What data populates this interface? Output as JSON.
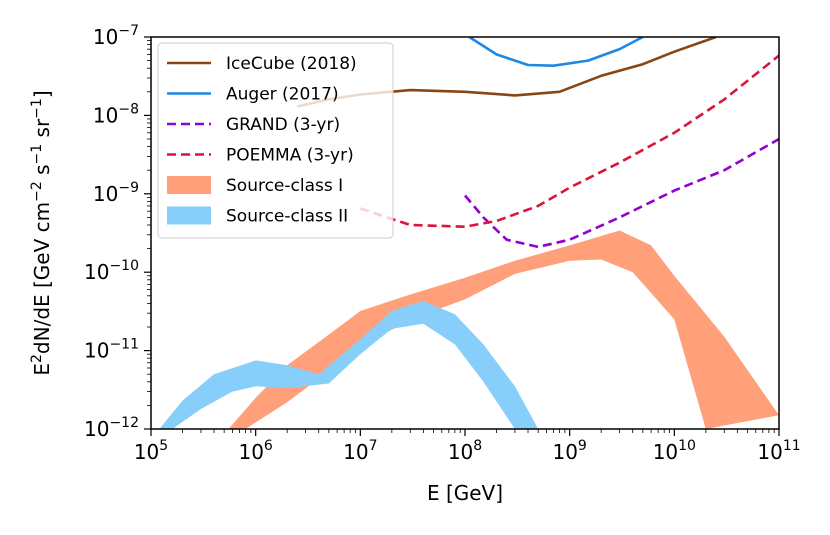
{
  "chart_data": {
    "type": "line",
    "xlabel": "E [GeV]",
    "ylabel_parts": [
      "E",
      "2",
      "dN/dE [GeV cm",
      "−2",
      " s",
      "−1",
      " sr",
      "−1",
      "]"
    ],
    "xscale": "log",
    "yscale": "log",
    "xlim": [
      100000,
      100000000000
    ],
    "ylim": [
      1e-12,
      1e-07
    ],
    "x_ticks": [
      {
        "value": 100000,
        "base": "10",
        "exp": "5"
      },
      {
        "value": 1000000,
        "base": "10",
        "exp": "6"
      },
      {
        "value": 10000000,
        "base": "10",
        "exp": "7"
      },
      {
        "value": 100000000,
        "base": "10",
        "exp": "8"
      },
      {
        "value": 1000000000,
        "base": "10",
        "exp": "9"
      },
      {
        "value": 10000000000,
        "base": "10",
        "exp": "10"
      },
      {
        "value": 100000000000,
        "base": "10",
        "exp": "11"
      }
    ],
    "y_ticks": [
      {
        "value": 1e-12,
        "base": "10",
        "exp": "−12"
      },
      {
        "value": 1e-11,
        "base": "10",
        "exp": "−11"
      },
      {
        "value": 1e-10,
        "base": "10",
        "exp": "−10"
      },
      {
        "value": 1e-09,
        "base": "10",
        "exp": "−9"
      },
      {
        "value": 1e-08,
        "base": "10",
        "exp": "−8"
      },
      {
        "value": 1e-07,
        "base": "10",
        "exp": "−7"
      }
    ],
    "grid": false,
    "legend_position": "top-left",
    "series": [
      {
        "name": "IceCube (2018)",
        "kind": "line",
        "color": "#8B4513",
        "dash": "solid",
        "points": [
          [
            2500000.0,
            1.3e-08
          ],
          [
            5000000.0,
            1.6e-08
          ],
          [
            10000000.0,
            1.85e-08
          ],
          [
            30000000.0,
            2.1e-08
          ],
          [
            100000000.0,
            2e-08
          ],
          [
            300000000.0,
            1.8e-08
          ],
          [
            800000000.0,
            2e-08
          ],
          [
            2000000000.0,
            3.2e-08
          ],
          [
            5000000000.0,
            4.5e-08
          ],
          [
            10000000000.0,
            6.5e-08
          ],
          [
            25000000000.0,
            1e-07
          ]
        ]
      },
      {
        "name": "Auger (2017)",
        "kind": "line",
        "color": "#1E88E5",
        "dash": "solid",
        "points": [
          [
            110000000.0,
            1e-07
          ],
          [
            200000000.0,
            6e-08
          ],
          [
            400000000.0,
            4.4e-08
          ],
          [
            700000000.0,
            4.3e-08
          ],
          [
            1500000000.0,
            5e-08
          ],
          [
            3000000000.0,
            7e-08
          ],
          [
            5000000000.0,
            1e-07
          ]
        ]
      },
      {
        "name": "GRAND (3-yr)",
        "kind": "line",
        "color": "#9400D3",
        "dash": "dashed",
        "points": [
          [
            100000000.0,
            9.5e-10
          ],
          [
            150000000.0,
            5e-10
          ],
          [
            250000000.0,
            2.6e-10
          ],
          [
            500000000.0,
            2.1e-10
          ],
          [
            1000000000.0,
            2.6e-10
          ],
          [
            3000000000.0,
            5e-10
          ],
          [
            10000000000.0,
            1.1e-09
          ],
          [
            30000000000.0,
            2e-09
          ],
          [
            100000000000.0,
            5e-09
          ]
        ]
      },
      {
        "name": "POEMMA (3-yr)",
        "kind": "line",
        "color": "#DC143C",
        "dash": "dashed",
        "points": [
          [
            10000000.0,
            6.5e-10
          ],
          [
            30000000.0,
            4e-10
          ],
          [
            100000000.0,
            3.8e-10
          ],
          [
            200000000.0,
            4.5e-10
          ],
          [
            500000000.0,
            7e-10
          ],
          [
            1000000000.0,
            1.2e-09
          ],
          [
            3000000000.0,
            2.5e-09
          ],
          [
            10000000000.0,
            6e-09
          ],
          [
            30000000000.0,
            1.6e-08
          ],
          [
            100000000000.0,
            5.8e-08
          ]
        ]
      },
      {
        "name": "Source-class I",
        "kind": "band",
        "color": "#FFA07A",
        "upper": [
          [
            550000.0,
            1e-12
          ],
          [
            1000000.0,
            2.5e-12
          ],
          [
            2000000.0,
            6.5e-12
          ],
          [
            5000000.0,
            1.6e-11
          ],
          [
            10000000.0,
            3.2e-11
          ],
          [
            30000000.0,
            5.2e-11
          ],
          [
            100000000.0,
            8.5e-11
          ],
          [
            300000000.0,
            1.4e-10
          ],
          [
            1000000000.0,
            2.2e-10
          ],
          [
            3000000000.0,
            3.4e-10
          ],
          [
            6000000000.0,
            2.2e-10
          ],
          [
            10000000000.0,
            9e-11
          ],
          [
            30000000000.0,
            1.5e-11
          ],
          [
            100000000000.0,
            1.5e-12
          ]
        ],
        "lower": [
          [
            800000.0,
            1e-12
          ],
          [
            2000000.0,
            2.2e-12
          ],
          [
            5000000.0,
            5.5e-12
          ],
          [
            10000000.0,
            1.1e-11
          ],
          [
            30000000.0,
            2.5e-11
          ],
          [
            100000000.0,
            4.5e-11
          ],
          [
            300000000.0,
            9.5e-11
          ],
          [
            1000000000.0,
            1.4e-10
          ],
          [
            2000000000.0,
            1.45e-10
          ],
          [
            4000000000.0,
            1e-10
          ],
          [
            10000000000.0,
            2.5e-11
          ],
          [
            20000000000.0,
            1e-12
          ]
        ]
      },
      {
        "name": "Source-class II",
        "kind": "band",
        "color": "#87CEFA",
        "upper": [
          [
            120000.0,
            1e-12
          ],
          [
            200000.0,
            2.3e-12
          ],
          [
            400000.0,
            5e-12
          ],
          [
            1000000.0,
            7.5e-12
          ],
          [
            2000000.0,
            6.5e-12
          ],
          [
            4000000.0,
            5e-12
          ],
          [
            10000000.0,
            1.4e-11
          ],
          [
            20000000.0,
            3.2e-11
          ],
          [
            40000000.0,
            4.3e-11
          ],
          [
            80000000.0,
            2.9e-11
          ],
          [
            150000000.0,
            1.2e-11
          ],
          [
            300000000.0,
            3.5e-12
          ],
          [
            500000000.0,
            1e-12
          ]
        ],
        "lower": [
          [
            160000.0,
            1e-12
          ],
          [
            300000.0,
            1.8e-12
          ],
          [
            600000.0,
            3e-12
          ],
          [
            1000000.0,
            3.5e-12
          ],
          [
            2000000.0,
            3.3e-12
          ],
          [
            5000000.0,
            3.8e-12
          ],
          [
            10000000.0,
            9e-12
          ],
          [
            20000000.0,
            1.9e-11
          ],
          [
            40000000.0,
            2.2e-11
          ],
          [
            80000000.0,
            1.2e-11
          ],
          [
            150000000.0,
            4e-12
          ],
          [
            300000000.0,
            1e-12
          ]
        ]
      }
    ]
  }
}
